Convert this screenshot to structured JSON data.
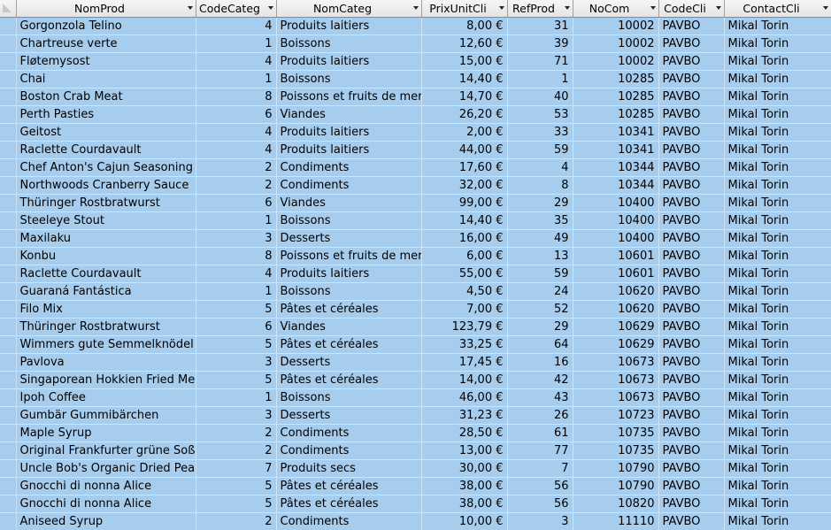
{
  "datasheet": {
    "columns": [
      {
        "name": "NomProd",
        "align": "left"
      },
      {
        "name": "CodeCateg",
        "align": "right"
      },
      {
        "name": "NomCateg",
        "align": "left"
      },
      {
        "name": "PrixUnitCli",
        "align": "right"
      },
      {
        "name": "RefProd",
        "align": "right"
      },
      {
        "name": "NoCom",
        "align": "right"
      },
      {
        "name": "CodeCli",
        "align": "left"
      },
      {
        "name": "ContactCli",
        "align": "left"
      }
    ],
    "rows": [
      [
        "Gorgonzola Telino",
        "4",
        "Produits laitiers",
        "8,00 €",
        "31",
        "10002",
        "PAVBO",
        "Mikal Torin"
      ],
      [
        "Chartreuse verte",
        "1",
        "Boissons",
        "12,60 €",
        "39",
        "10002",
        "PAVBO",
        "Mikal Torin"
      ],
      [
        "Fløtemysost",
        "4",
        "Produits laitiers",
        "15,00 €",
        "71",
        "10002",
        "PAVBO",
        "Mikal Torin"
      ],
      [
        "Chai",
        "1",
        "Boissons",
        "14,40 €",
        "1",
        "10285",
        "PAVBO",
        "Mikal Torin"
      ],
      [
        "Boston Crab Meat",
        "8",
        "Poissons et fruits de mer",
        "14,70 €",
        "40",
        "10285",
        "PAVBO",
        "Mikal Torin"
      ],
      [
        "Perth Pasties",
        "6",
        "Viandes",
        "26,20 €",
        "53",
        "10285",
        "PAVBO",
        "Mikal Torin"
      ],
      [
        "Geitost",
        "4",
        "Produits laitiers",
        "2,00 €",
        "33",
        "10341",
        "PAVBO",
        "Mikal Torin"
      ],
      [
        "Raclette Courdavault",
        "4",
        "Produits laitiers",
        "44,00 €",
        "59",
        "10341",
        "PAVBO",
        "Mikal Torin"
      ],
      [
        "Chef Anton's Cajun Seasoning",
        "2",
        "Condiments",
        "17,60 €",
        "4",
        "10344",
        "PAVBO",
        "Mikal Torin"
      ],
      [
        "Northwoods Cranberry Sauce",
        "2",
        "Condiments",
        "32,00 €",
        "8",
        "10344",
        "PAVBO",
        "Mikal Torin"
      ],
      [
        "Thüringer Rostbratwurst",
        "6",
        "Viandes",
        "99,00 €",
        "29",
        "10400",
        "PAVBO",
        "Mikal Torin"
      ],
      [
        "Steeleye Stout",
        "1",
        "Boissons",
        "14,40 €",
        "35",
        "10400",
        "PAVBO",
        "Mikal Torin"
      ],
      [
        "Maxilaku",
        "3",
        "Desserts",
        "16,00 €",
        "49",
        "10400",
        "PAVBO",
        "Mikal Torin"
      ],
      [
        "Konbu",
        "8",
        "Poissons et fruits de mer",
        "6,00 €",
        "13",
        "10601",
        "PAVBO",
        "Mikal Torin"
      ],
      [
        "Raclette Courdavault",
        "4",
        "Produits laitiers",
        "55,00 €",
        "59",
        "10601",
        "PAVBO",
        "Mikal Torin"
      ],
      [
        "Guaraná Fantástica",
        "1",
        "Boissons",
        "4,50 €",
        "24",
        "10620",
        "PAVBO",
        "Mikal Torin"
      ],
      [
        "Filo Mix",
        "5",
        "Pâtes et céréales",
        "7,00 €",
        "52",
        "10620",
        "PAVBO",
        "Mikal Torin"
      ],
      [
        "Thüringer Rostbratwurst",
        "6",
        "Viandes",
        "123,79 €",
        "29",
        "10629",
        "PAVBO",
        "Mikal Torin"
      ],
      [
        "Wimmers gute Semmelknödel",
        "5",
        "Pâtes et céréales",
        "33,25 €",
        "64",
        "10629",
        "PAVBO",
        "Mikal Torin"
      ],
      [
        "Pavlova",
        "3",
        "Desserts",
        "17,45 €",
        "16",
        "10673",
        "PAVBO",
        "Mikal Torin"
      ],
      [
        "Singaporean Hokkien Fried Mee",
        "5",
        "Pâtes et céréales",
        "14,00 €",
        "42",
        "10673",
        "PAVBO",
        "Mikal Torin"
      ],
      [
        "Ipoh Coffee",
        "1",
        "Boissons",
        "46,00 €",
        "43",
        "10673",
        "PAVBO",
        "Mikal Torin"
      ],
      [
        "Gumbär Gummibärchen",
        "3",
        "Desserts",
        "31,23 €",
        "26",
        "10723",
        "PAVBO",
        "Mikal Torin"
      ],
      [
        "Maple Syrup",
        "2",
        "Condiments",
        "28,50 €",
        "61",
        "10735",
        "PAVBO",
        "Mikal Torin"
      ],
      [
        "Original Frankfurter grüne Soße",
        "2",
        "Condiments",
        "13,00 €",
        "77",
        "10735",
        "PAVBO",
        "Mikal Torin"
      ],
      [
        "Uncle Bob's Organic Dried Pears",
        "7",
        "Produits secs",
        "30,00 €",
        "7",
        "10790",
        "PAVBO",
        "Mikal Torin"
      ],
      [
        "Gnocchi di nonna Alice",
        "5",
        "Pâtes et céréales",
        "38,00 €",
        "56",
        "10790",
        "PAVBO",
        "Mikal Torin"
      ],
      [
        "Gnocchi di nonna Alice",
        "5",
        "Pâtes et céréales",
        "38,00 €",
        "56",
        "10820",
        "PAVBO",
        "Mikal Torin"
      ],
      [
        "Aniseed Syrup",
        "2",
        "Condiments",
        "10,00 €",
        "3",
        "11110",
        "PAVBO",
        "Mikal Torin"
      ]
    ]
  },
  "colors": {
    "row_background": "#a6cdee",
    "header_background": "#ececec",
    "grid_line": "#d0e4f5"
  },
  "icons": {
    "column_dropdown": "chevron-down-icon",
    "select_all": "select-all-triangle-icon"
  }
}
